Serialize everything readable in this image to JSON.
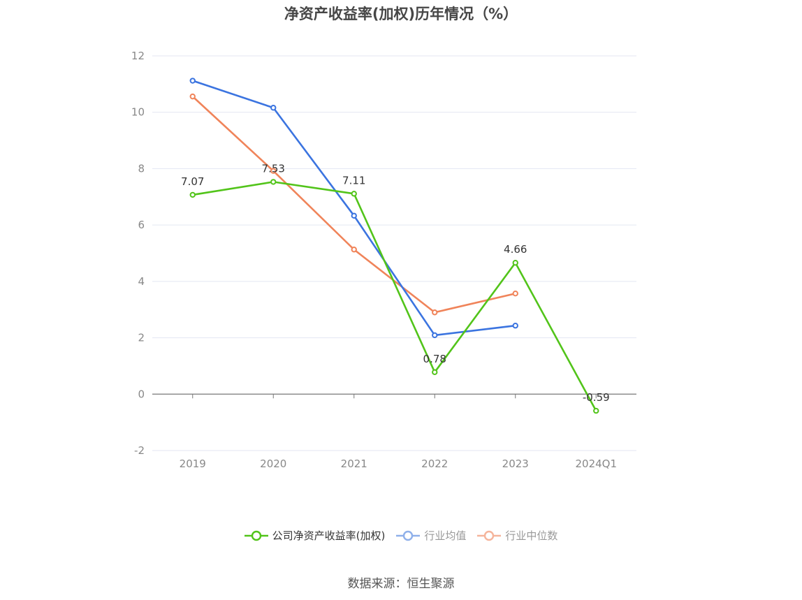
{
  "chart_data": {
    "type": "line",
    "title": "净资产收益率(加权)历年情况（%）",
    "categories": [
      "2019",
      "2020",
      "2021",
      "2022",
      "2023",
      "2024Q1"
    ],
    "ylim": [
      -2,
      12
    ],
    "yticks": [
      -2,
      0,
      2,
      4,
      6,
      8,
      10,
      12
    ],
    "grid": true,
    "legend_position": "bottom",
    "series": [
      {
        "name": "公司净资产收益率(加权)",
        "color": "#52c41a",
        "values": [
          7.07,
          7.53,
          7.11,
          0.78,
          4.66,
          -0.59
        ],
        "labels": [
          "7.07",
          "7.53",
          "7.11",
          "0.78",
          "4.66",
          "-0.59"
        ]
      },
      {
        "name": "行业均值",
        "color": "#3b74e0",
        "values": [
          11.12,
          10.16,
          6.33,
          2.09,
          2.43,
          null
        ]
      },
      {
        "name": "行业中位数",
        "color": "#f0845a",
        "values": [
          10.56,
          7.92,
          5.13,
          2.9,
          3.57,
          null
        ]
      }
    ]
  },
  "legend": {
    "items": [
      {
        "label": "公司净资产收益率(加权)",
        "color": "#52c41a",
        "active": true
      },
      {
        "label": "行业均值",
        "color": "#8fb0ea",
        "active": false
      },
      {
        "label": "行业中位数",
        "color": "#f5b49b",
        "active": false
      }
    ]
  },
  "source": "数据来源：恒生聚源"
}
